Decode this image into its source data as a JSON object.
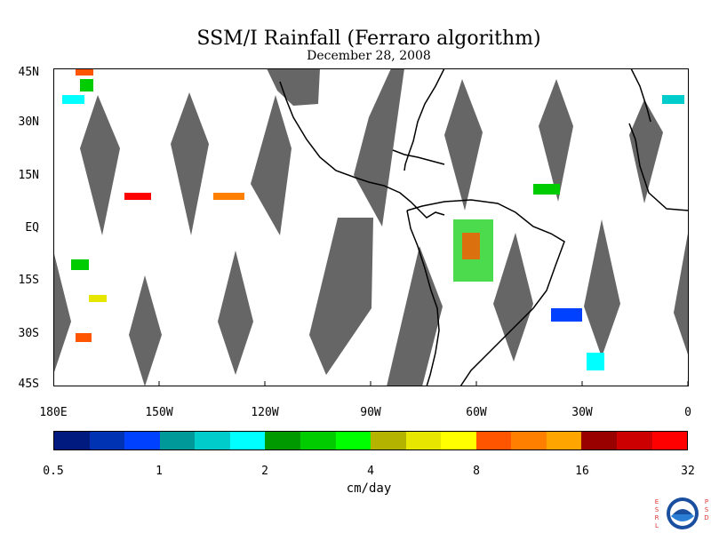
{
  "title": "SSM/I Rainfall (Ferraro algorithm)",
  "subtitle": "December 28, 2008",
  "lat_labels": [
    "45N",
    "30N",
    "15N",
    "EQ",
    "15S",
    "30S",
    "45S"
  ],
  "lon_labels": [
    "180E",
    "150W",
    "120W",
    "90W",
    "60W",
    "30W",
    "0"
  ],
  "colorbar": {
    "colors": [
      "#001a80",
      "#0033b3",
      "#0040ff",
      "#009999",
      "#00cccc",
      "#00ffff",
      "#009900",
      "#00cc00",
      "#00ff00",
      "#b3b300",
      "#e6e600",
      "#ffff00",
      "#ff5500",
      "#ff8000",
      "#ffa500",
      "#990000",
      "#cc0000",
      "#ff0000"
    ],
    "tick_labels": [
      "0.5",
      "1",
      "2",
      "4",
      "8",
      "16",
      "32"
    ],
    "unit": "cm/day"
  },
  "colors": {
    "no_data": "#666666",
    "land_outline": "#000000",
    "background": "#ffffff"
  },
  "logo": {
    "left_text": "ESRL",
    "right_text": "PSD",
    "seal_text": "NOAA"
  }
}
